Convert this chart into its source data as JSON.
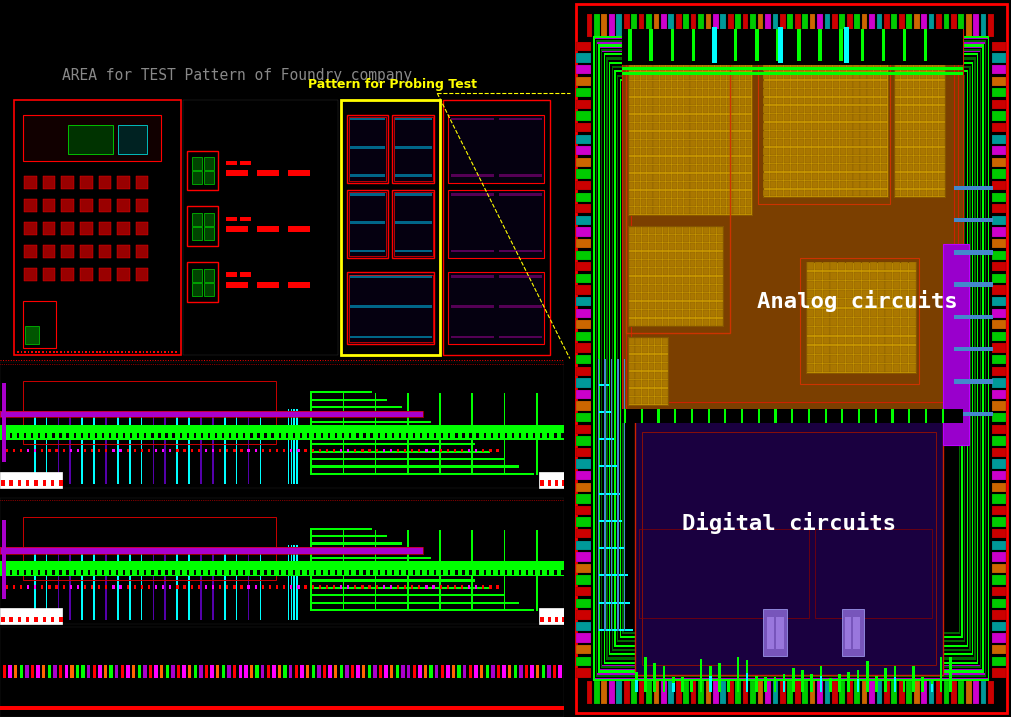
{
  "fig_width": 10.11,
  "fig_height": 7.17,
  "bg_color": "#000000",
  "left_panel": {
    "title": "AREA for TEST Pattern of Foundry company",
    "title_color": "#888888",
    "title_fontsize": 10.5,
    "probe_label": "Pattern for Probing Test",
    "probe_label_color": "#ffff00",
    "probe_label_fontsize": 9
  },
  "right_panel": {
    "border_color": "#cc0000",
    "analog_label": "Analog circuits",
    "analog_color": "#ffffff",
    "digital_label": "Digital circuits",
    "digital_color": "#ffffff",
    "label_fontsize": 16
  },
  "colors": {
    "red": "#ff0000",
    "dark_red": "#cc0000",
    "green": "#00ff00",
    "dark_green": "#007700",
    "cyan": "#00ffff",
    "magenta": "#ff00ff",
    "purple": "#aa00cc",
    "dark_purple": "#1a0040",
    "blue": "#0088cc",
    "yellow": "#ffff00",
    "orange": "#cc6600",
    "gold": "#cc9900",
    "brown": "#7B3F00",
    "dark_brown": "#4a2000",
    "white": "#ffffff",
    "pink": "#cc88cc"
  }
}
